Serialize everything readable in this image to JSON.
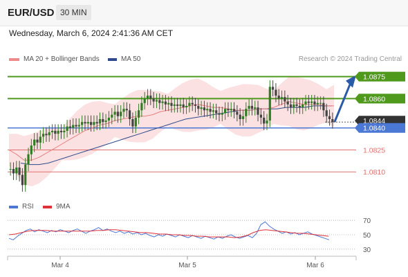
{
  "header": {
    "symbol": "EUR/USD",
    "timeframe": "30 MIN",
    "timestamp": "Wednesday, March 6, 2024 2:41:36 AM CET"
  },
  "legend": {
    "ma20": "MA 20 + Bollinger Bands",
    "ma50": "MA 50",
    "credit": "Research © 2024 Trading Central"
  },
  "rsi_legend": {
    "rsi": "RSI",
    "ma9": "9MA"
  },
  "colors": {
    "ma20": "#e88080",
    "ma50": "#2e4a8c",
    "bands": "#f7c9c9",
    "resistance": "#4f9a1c",
    "support": "#4a78d4",
    "pivot_red": "#e07070",
    "current": "#333333",
    "candle": "#2f7d22",
    "rsi": "#4a78d4",
    "rsi_ma": "#e0303a",
    "arrow": "#2a5aa8"
  },
  "chart_data": [
    {
      "type": "candlestick",
      "ylim": [
        1.0795,
        1.088
      ],
      "x_ticks": [
        "Mar 4",
        "Mar 5",
        "Mar 6"
      ],
      "close_series": [
        1.0812,
        1.0809,
        1.0813,
        1.0808,
        1.0801,
        1.0815,
        1.0822,
        1.0828,
        1.0832,
        1.083,
        1.0834,
        1.0836,
        1.0835,
        1.0837,
        1.0838,
        1.0836,
        1.0838,
        1.0837,
        1.0838,
        1.0841,
        1.084,
        1.0842,
        1.0841,
        1.0842,
        1.0844,
        1.0843,
        1.0844,
        1.0842,
        1.0844,
        1.0843,
        1.0846,
        1.0844,
        1.0845,
        1.0847,
        1.0849,
        1.0851,
        1.0848,
        1.0851,
        1.0853,
        1.0852,
        1.0846,
        1.0841,
        1.0847,
        1.0852,
        1.0857,
        1.086,
        1.0862,
        1.086,
        1.0858,
        1.0859,
        1.0857,
        1.0858,
        1.0856,
        1.0857,
        1.0855,
        1.0856,
        1.0855,
        1.0856,
        1.0854,
        1.0855,
        1.0857,
        1.0856,
        1.0855,
        1.0853,
        1.0854,
        1.0852,
        1.0853,
        1.0851,
        1.0852,
        1.085,
        1.0849,
        1.085,
        1.0853,
        1.0852,
        1.0853,
        1.0851,
        1.0849,
        1.0846,
        1.0848,
        1.0853,
        1.0855,
        1.0853,
        1.0854,
        1.0849,
        1.0847,
        1.0843,
        1.0845,
        1.0868,
        1.0866,
        1.0862,
        1.086,
        1.0861,
        1.0858,
        1.0856,
        1.0854,
        1.0856,
        1.0855,
        1.0854,
        1.0856,
        1.0858,
        1.0857,
        1.0858,
        1.0856,
        1.0857,
        1.0857,
        1.0852,
        1.0848,
        1.0846,
        1.0844
      ],
      "ma20_series": [
        1.0825,
        1.0822,
        1.0818,
        1.0818,
        1.082,
        1.0823,
        1.0826,
        1.0829,
        1.0832,
        1.0835,
        1.0838,
        1.084,
        1.0842,
        1.0843,
        1.0845,
        1.0846,
        1.0847,
        1.0848,
        1.0848,
        1.0849,
        1.0851,
        1.0852,
        1.0853,
        1.0854,
        1.0855,
        1.0856,
        1.0855,
        1.0854,
        1.0854,
        1.0853,
        1.0852,
        1.0852,
        1.0852,
        1.0853,
        1.0853,
        1.0854,
        1.0856,
        1.0858,
        1.0857,
        1.0856,
        1.0856,
        1.0856,
        1.0855,
        1.0855
      ],
      "ma50_series": [
        1.0816,
        1.0815,
        1.0815,
        1.0816,
        1.0818,
        1.082,
        1.0822,
        1.0824,
        1.0826,
        1.0828,
        1.083,
        1.0832,
        1.0834,
        1.0836,
        1.0838,
        1.084,
        1.0842,
        1.0844,
        1.0846,
        1.0847,
        1.0848,
        1.0849,
        1.085,
        1.0851,
        1.0852,
        1.0852,
        1.0853,
        1.0853,
        1.0853,
        1.0854,
        1.0854,
        1.0854,
        1.0855,
        1.0855,
        1.0855
      ],
      "levels": [
        {
          "label": "1.0875",
          "value": 1.0875,
          "kind": "resistance"
        },
        {
          "label": "1.0860",
          "value": 1.086,
          "kind": "resistance"
        },
        {
          "label": "1.0844",
          "value": 1.0844,
          "kind": "current"
        },
        {
          "label": "1.0840",
          "value": 1.084,
          "kind": "support"
        },
        {
          "label": "1.0825",
          "value": 1.0825,
          "kind": "pivot"
        },
        {
          "label": "1.0810",
          "value": 1.081,
          "kind": "pivot"
        }
      ],
      "forecast": {
        "from": 1.0844,
        "to": 1.0875,
        "direction": "up"
      }
    },
    {
      "type": "line",
      "name": "RSI",
      "ylim": [
        25,
        75
      ],
      "y_ticks": [
        "70",
        "50",
        "30"
      ],
      "rsi_series": [
        45,
        43,
        48,
        52,
        56,
        58,
        54,
        57,
        55,
        53,
        56,
        54,
        57,
        55,
        53,
        56,
        58,
        55,
        52,
        55,
        57,
        60,
        56,
        58,
        55,
        53,
        55,
        52,
        54,
        51,
        53,
        50,
        52,
        49,
        47,
        50,
        48,
        51,
        49,
        47,
        50,
        48,
        46,
        49,
        47,
        45,
        48,
        46,
        44,
        47,
        45,
        48,
        50,
        47,
        45,
        47,
        49,
        46,
        52,
        64,
        68,
        62,
        58,
        55,
        52,
        54,
        51,
        53,
        50,
        52,
        54,
        51,
        49,
        47,
        45,
        43
      ],
      "ma9_series": [
        50,
        51,
        53,
        55,
        56,
        56,
        56,
        55,
        55,
        55,
        55,
        55,
        55,
        55,
        56,
        56,
        57,
        57,
        56,
        55,
        54,
        53,
        53,
        52,
        51,
        51,
        50,
        50,
        49,
        49,
        48,
        48,
        47,
        47,
        47,
        47,
        46,
        47,
        49,
        53,
        56,
        57,
        56,
        55,
        54,
        53,
        52,
        52,
        51,
        50,
        49,
        48
      ]
    }
  ]
}
